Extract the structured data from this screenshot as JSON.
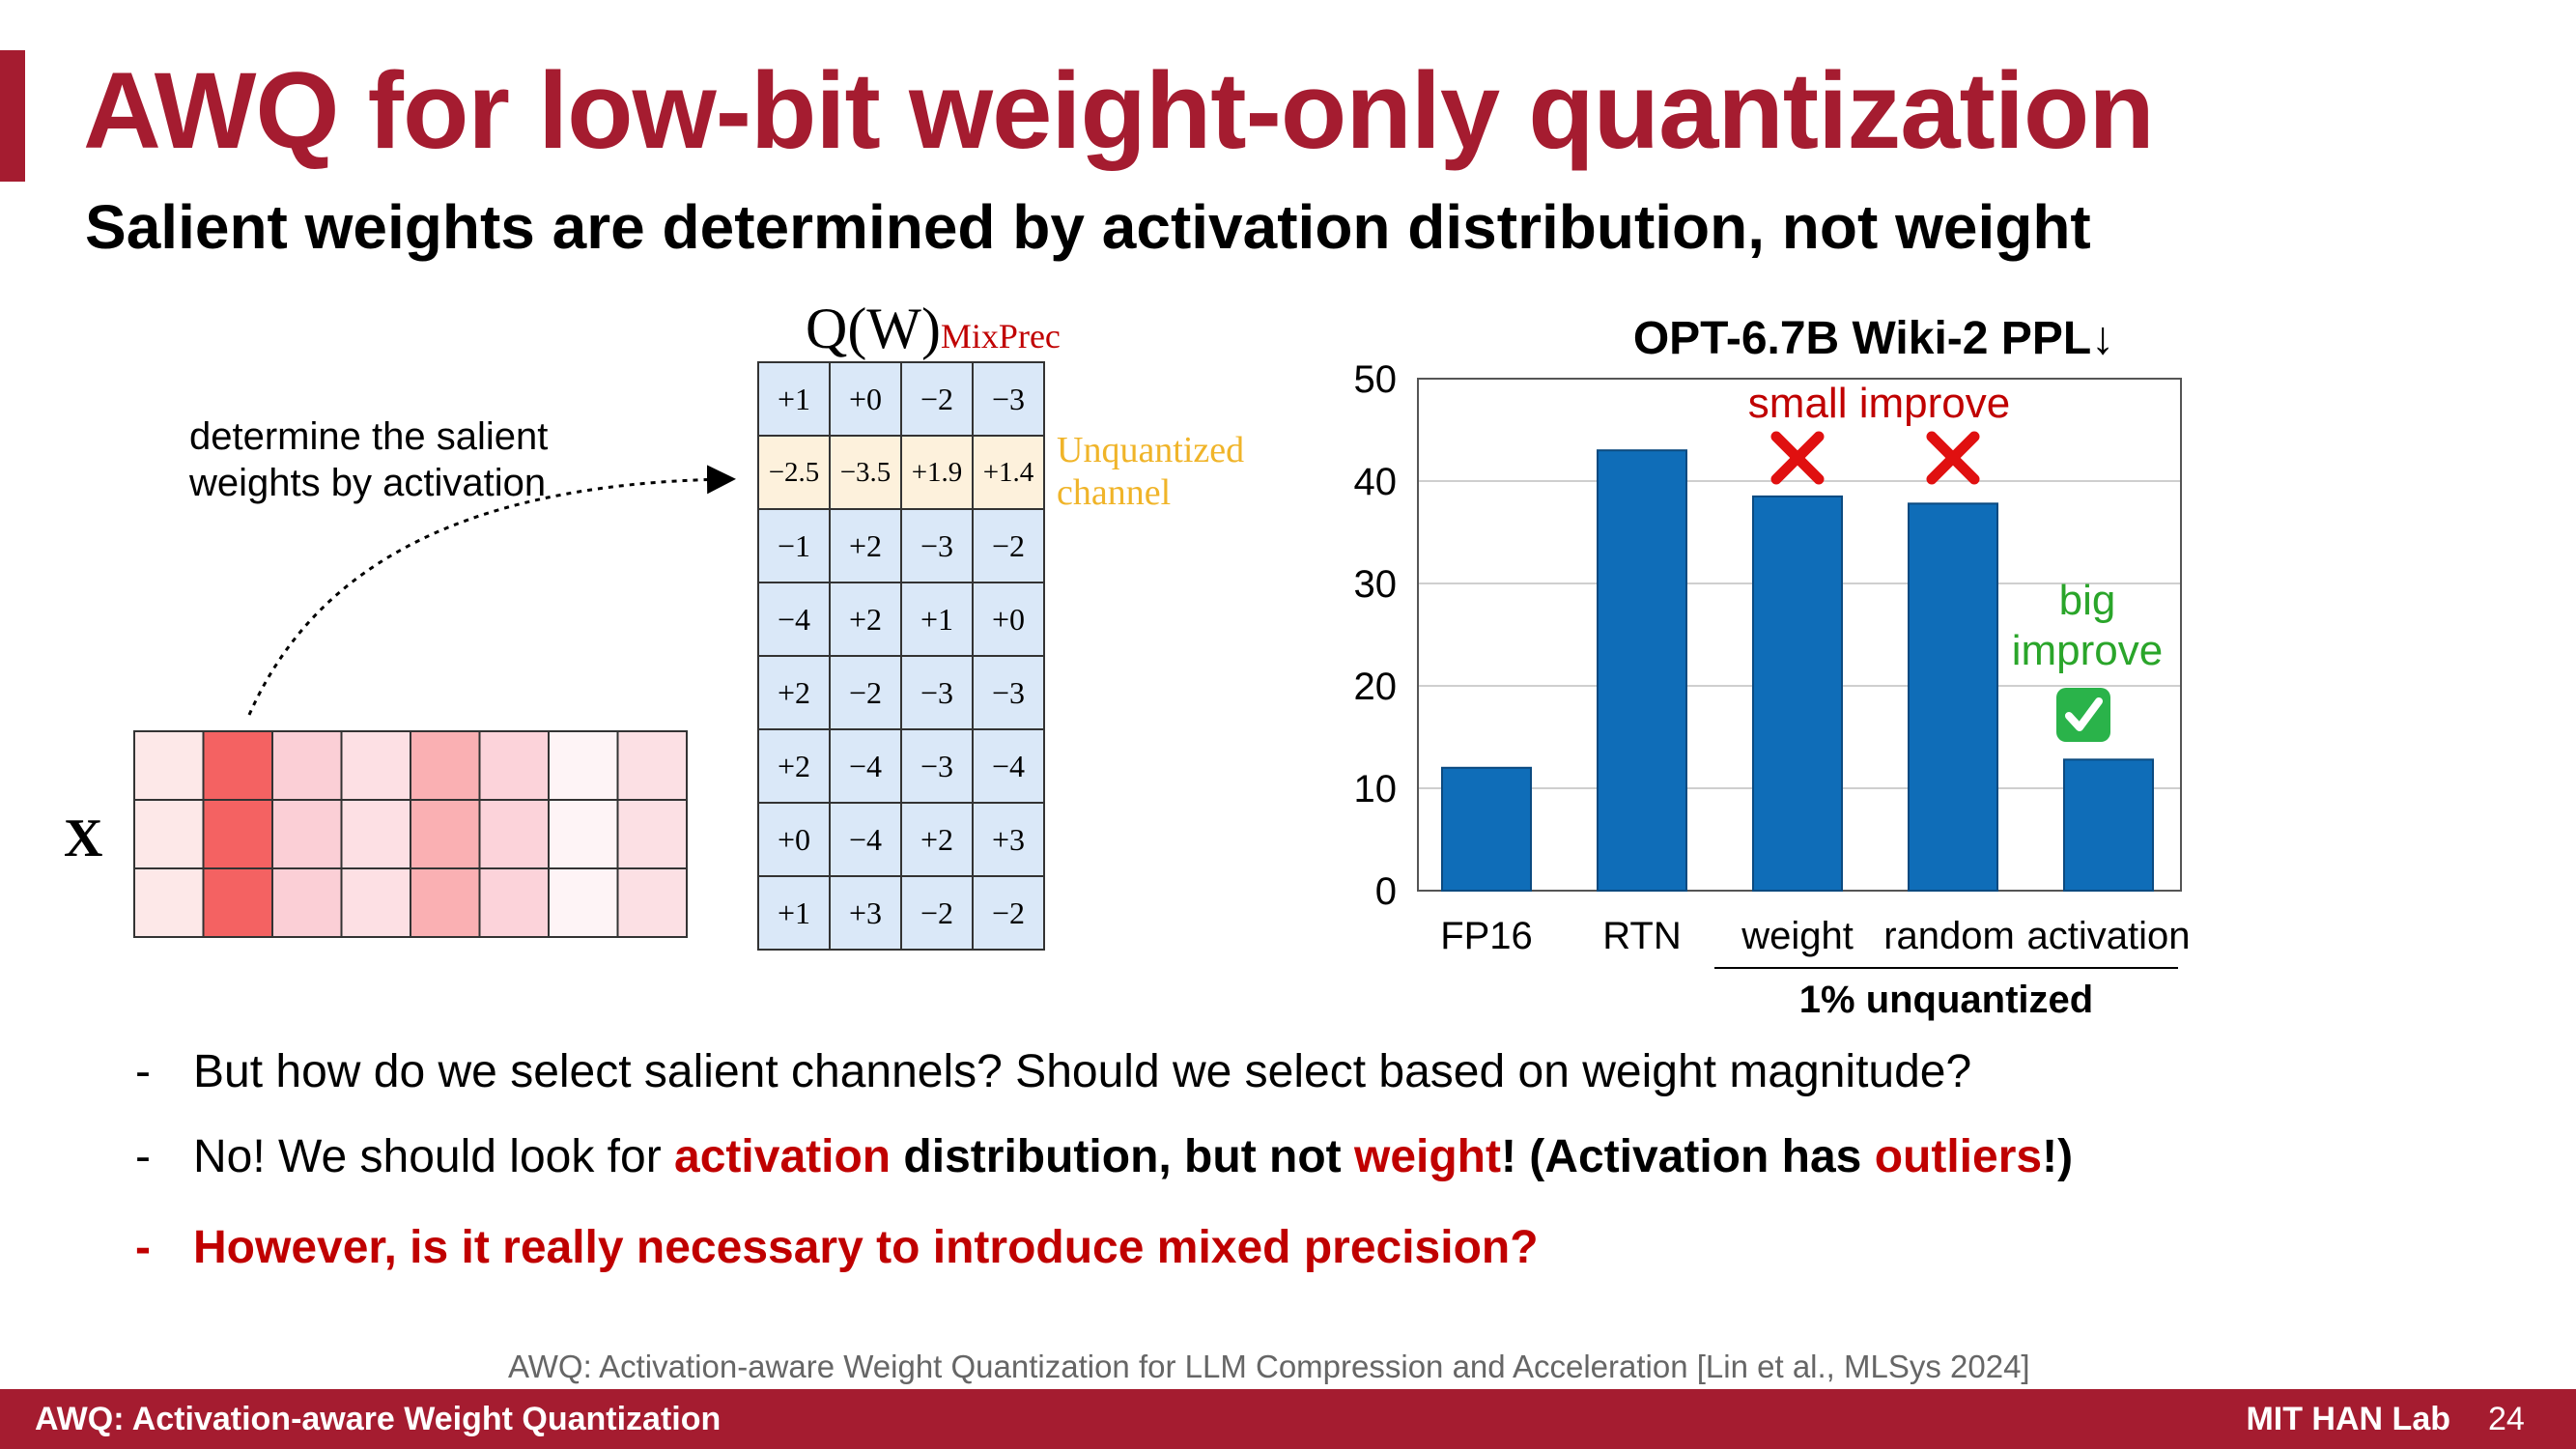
{
  "slide": {
    "title": "AWQ for low-bit weight-only quantization",
    "subtitle": "Salient weights are determined by activation distribution, not weight"
  },
  "diagram": {
    "annotation": "determine the salient\nweights by activation",
    "x_label": "X",
    "heatmap_colors": [
      [
        "#fde8e8",
        "#f46262",
        "#fbcfd6",
        "#fde0e4",
        "#fab0b3",
        "#fcd3da",
        "#fef4f6",
        "#fce0e4"
      ],
      [
        "#fde8e8",
        "#f46262",
        "#fbcfd6",
        "#fde0e4",
        "#fab0b3",
        "#fcd3da",
        "#fef4f6",
        "#fce0e4"
      ],
      [
        "#fde8e8",
        "#f46262",
        "#fbcfd6",
        "#fde0e4",
        "#fab0b3",
        "#fcd3da",
        "#fef4f6",
        "#fce0e4"
      ]
    ],
    "qw_label": "Q(W)",
    "qw_sub": "MixPrec",
    "weight_rows": [
      [
        "+1",
        "+0",
        "−2",
        "−3"
      ],
      [
        "−2.5",
        "−3.5",
        "+1.9",
        "+1.4"
      ],
      [
        "−1",
        "+2",
        "−3",
        "−2"
      ],
      [
        "−4",
        "+2",
        "+1",
        "+0"
      ],
      [
        "+2",
        "−2",
        "−3",
        "−3"
      ],
      [
        "+2",
        "−4",
        "−3",
        "−4"
      ],
      [
        "+0",
        "−4",
        "+2",
        "+3"
      ],
      [
        "+1",
        "+3",
        "−2",
        "−2"
      ]
    ],
    "unquantized_label": "Unquantized\nchannel",
    "colors": {
      "weight_cell": "#dae8f8",
      "unquantized_cell": "#fdf1dc",
      "unquantized_text": "#f0b429"
    }
  },
  "chart_data": {
    "type": "bar",
    "title": "OPT-6.7B Wiki-2 PPL↓",
    "categories": [
      "FP16",
      "RTN",
      "weight",
      "random",
      "activation"
    ],
    "values": [
      12,
      43,
      38.5,
      37.8,
      12.8
    ],
    "ylim": [
      0,
      50
    ],
    "yticks": [
      0,
      10,
      20,
      30,
      40,
      50
    ],
    "grid": true,
    "bar_color": "#0f6db8",
    "group_label": "1% unquantized",
    "annotations": [
      {
        "text": "small improve",
        "color": "#c00000"
      },
      {
        "text": "big",
        "color": "#2aa52a"
      },
      {
        "text": "improve",
        "color": "#2aa52a"
      }
    ],
    "markers": [
      {
        "category": "weight",
        "icon": "cross-icon"
      },
      {
        "category": "random",
        "icon": "cross-icon"
      },
      {
        "category": "activation",
        "icon": "check-icon"
      }
    ]
  },
  "bullets": {
    "dash": "-",
    "b1": "But how do we select salient channels? Should we select based on weight magnitude?",
    "b2": {
      "t1": "No! We should look for ",
      "t2": "activation",
      "t3": " distribution, but not ",
      "t4": "weight",
      "t5": "! (Activation has ",
      "t6": "outliers",
      "t7": "!)"
    },
    "b3": "However, is it really necessary to introduce mixed precision?"
  },
  "citation": "AWQ: Activation-aware Weight Quantization for LLM Compression and Acceleration  [Lin et al., MLSys 2024]",
  "footer": {
    "left": "AWQ: Activation-aware Weight Quantization",
    "right": "MIT HAN Lab",
    "page": "24"
  }
}
